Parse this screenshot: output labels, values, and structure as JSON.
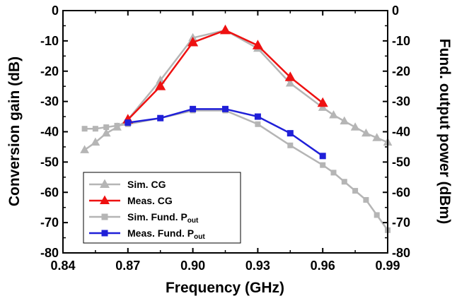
{
  "chart_data": {
    "type": "line",
    "xlabel": "Frequency (GHz)",
    "ylabel_left": "Conversion gain (dB)",
    "ylabel_right": "Fund. output power (dBm)",
    "xlim": [
      0.84,
      0.99
    ],
    "ylim_left": [
      -80,
      0
    ],
    "ylim_right": [
      -80,
      0
    ],
    "x_ticks": [
      "0.84",
      "0.87",
      "0.90",
      "0.93",
      "0.96",
      "0.99"
    ],
    "x_tick_values": [
      0.84,
      0.87,
      0.9,
      0.93,
      0.96,
      0.99
    ],
    "y_ticks_left": [
      "0",
      "-10",
      "-20",
      "-30",
      "-40",
      "-50",
      "-60",
      "-70",
      "-80"
    ],
    "y_ticks_right": [
      "0",
      "-10",
      "-20",
      "-30",
      "-40",
      "-50",
      "-60",
      "-70",
      "-80"
    ],
    "y_tick_values": [
      0,
      -10,
      -20,
      -30,
      -40,
      -50,
      -60,
      -70,
      -80
    ],
    "series": [
      {
        "name": "Sim. CG",
        "color": "#b5b5b5",
        "marker": "triangle",
        "axis": "left",
        "x": [
          0.85,
          0.855,
          0.86,
          0.865,
          0.87,
          0.885,
          0.9,
          0.915,
          0.93,
          0.945,
          0.96,
          0.965,
          0.97,
          0.975,
          0.98,
          0.985,
          0.99
        ],
        "y": [
          -46,
          -43.5,
          -40.5,
          -38.5,
          -36,
          -23,
          -9,
          -6.5,
          -12.5,
          -24,
          -32,
          -34.5,
          -36.5,
          -38.5,
          -40.5,
          -42,
          -43.5
        ]
      },
      {
        "name": "Meas. CG",
        "color": "#ee1111",
        "marker": "triangle",
        "axis": "left",
        "x": [
          0.87,
          0.885,
          0.9,
          0.915,
          0.93,
          0.945,
          0.96
        ],
        "y": [
          -36,
          -25,
          -10.5,
          -6.5,
          -11.5,
          -22,
          -30.5
        ]
      },
      {
        "name": "Sim. Fund. P",
        "name_sub": "out",
        "color": "#b5b5b5",
        "marker": "square",
        "axis": "right",
        "x": [
          0.85,
          0.855,
          0.86,
          0.865,
          0.87,
          0.885,
          0.9,
          0.915,
          0.93,
          0.945,
          0.96,
          0.965,
          0.97,
          0.975,
          0.98,
          0.985,
          0.99
        ],
        "y": [
          -39,
          -39,
          -38.5,
          -38,
          -37.5,
          -35.5,
          -33,
          -33,
          -37.5,
          -44.5,
          -51,
          -53.5,
          -56.5,
          -59.5,
          -62.5,
          -67.5,
          -72.5
        ]
      },
      {
        "name": "Meas. Fund. P",
        "name_sub": "out",
        "color": "#1f1fd8",
        "marker": "square",
        "axis": "right",
        "x": [
          0.87,
          0.885,
          0.9,
          0.915,
          0.93,
          0.945,
          0.96
        ],
        "y": [
          -37,
          -35.5,
          -32.5,
          -32.5,
          -35,
          -40.5,
          -48
        ]
      }
    ],
    "legend_position": "bottom-left"
  }
}
